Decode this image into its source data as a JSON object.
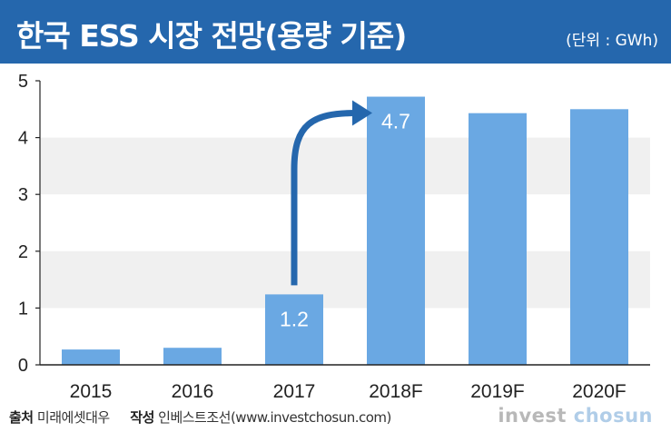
{
  "header": {
    "title": "한국 ESS 시장 전망(용량 기준)",
    "unit": "(단위 : GWh)"
  },
  "chart_data": {
    "type": "bar",
    "categories": [
      "2015",
      "2016",
      "2017",
      "2018F",
      "2019F",
      "2020F"
    ],
    "values": [
      0.27,
      0.3,
      1.24,
      4.72,
      4.43,
      4.5
    ],
    "data_labels": [
      "",
      "",
      "1.2",
      "4.7",
      "",
      ""
    ],
    "ylim": [
      0,
      5
    ],
    "yticks": [
      "0",
      "1",
      "2",
      "3",
      "4",
      "5"
    ],
    "xlabel": "",
    "ylabel": "",
    "annotations": [
      {
        "type": "curved-arrow",
        "from": "2017",
        "to": "2018F"
      }
    ],
    "grid": "alternating horizontal bands",
    "bar_color": "#6aa8e3",
    "band_color": "#f0f0f0",
    "arrow_color": "#2567ad"
  },
  "footer": {
    "source_label": "출처",
    "source_value": "미래에셋대우",
    "author_label": "작성",
    "author_value": "인베스트조선(www.investchosun.com)",
    "logo_part1": "invest ",
    "logo_part2": "chosun"
  }
}
